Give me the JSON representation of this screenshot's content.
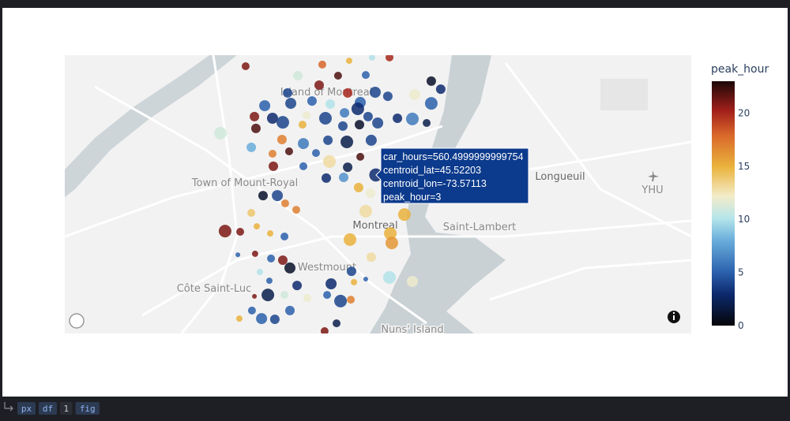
{
  "chart_data": {
    "type": "scattermapbox",
    "map_labels": {
      "island": "Island of Montreal",
      "town": "Town of Mount-Royal",
      "city": "Montreal",
      "westmount": "Westmount",
      "cote": "Côte Saint-Luc",
      "longueuil": "Longueuil",
      "airport": "YHU",
      "lambert": "Saint-Lambert",
      "nuns": "Nuns' Island"
    },
    "series": [
      {
        "lat": [
          45.568,
          45.5687,
          45.5703,
          45.5717,
          45.5717,
          45.564,
          45.564,
          45.5643,
          45.5617,
          45.56,
          45.5567,
          45.5567,
          45.557,
          45.5583,
          45.5513,
          45.5523,
          45.5533,
          45.552,
          45.5527,
          45.5553,
          45.556,
          45.5523,
          45.55,
          45.546,
          45.5467,
          45.5443,
          45.5473,
          45.546,
          45.5483,
          45.5467,
          45.546,
          45.5457,
          45.5397,
          45.5417,
          45.5433,
          45.5427,
          45.5433,
          45.544,
          45.544,
          45.5337,
          45.537,
          45.5353,
          45.5367,
          45.536,
          45.5367,
          45.531,
          45.532,
          45.5313,
          45.5277,
          45.5253,
          45.5297,
          45.5257,
          45.5257,
          45.5207,
          45.521,
          45.5167,
          45.5143,
          45.5133,
          45.5133,
          45.51,
          45.5073,
          45.506,
          45.5067,
          45.5053,
          45.4983,
          45.498,
          45.5003,
          45.4973,
          45.496,
          45.4947,
          45.4973,
          45.4933,
          45.4883,
          45.4887,
          45.4867,
          45.486,
          45.4827,
          45.481,
          45.4813,
          45.4873,
          45.4787,
          45.477,
          45.4773,
          45.4753,
          45.476,
          45.4767,
          45.478,
          45.4713,
          45.4713,
          45.47,
          45.4687,
          45.4693,
          45.4713,
          45.4707,
          45.4613,
          45.4647,
          45.4613,
          45.461,
          45.4647,
          45.4593,
          45.456,
          45.52203
        ],
        "lon": [
          -73.6496,
          -73.6034,
          -73.5872,
          -73.5734,
          -73.5629,
          -73.6181,
          -73.5939,
          -73.5772,
          -73.5377,
          -73.6053,
          -73.6243,
          -73.5881,
          -73.5715,
          -73.532,
          -73.6381,
          -73.6224,
          -73.6096,
          -73.5986,
          -73.5805,
          -73.5639,
          -73.5477,
          -73.5377,
          -73.582,
          -73.6334,
          -73.6443,
          -73.6272,
          -73.6129,
          -73.6015,
          -73.59,
          -73.5758,
          -73.5581,
          -73.5491,
          -73.6648,
          -73.6434,
          -73.6153,
          -73.591,
          -73.581,
          -73.57,
          -73.5405,
          -73.6462,
          -73.6277,
          -73.6148,
          -73.6,
          -73.5886,
          -73.5739,
          -73.6334,
          -73.6234,
          -73.6072,
          -73.5991,
          -73.5881,
          -73.5805,
          -73.6329,
          -73.6148,
          -73.601,
          -73.5905,
          -73.5815,
          -73.5743,
          -73.6391,
          -73.6305,
          -73.6258,
          -73.6191,
          -73.6462,
          -73.5772,
          -73.5539,
          -73.662,
          -73.6529,
          -73.6429,
          -73.6348,
          -73.6262,
          -73.5867,
          -73.5624,
          -73.5615,
          -73.6543,
          -73.6439,
          -73.6343,
          -73.6272,
          -73.6229,
          -73.641,
          -73.5858,
          -73.5739,
          -73.5629,
          -73.5491,
          -73.6353,
          -73.6186,
          -73.5981,
          -73.5843,
          -73.5772,
          -73.6362,
          -73.6262,
          -73.6124,
          -73.5924,
          -73.5862,
          -73.6005,
          -73.6443,
          -73.6534,
          -73.6458,
          -73.64,
          -73.632,
          -73.6229,
          -73.5948,
          -73.602,
          -73.57113
        ],
        "car_hours": [
          204,
          204,
          131,
          131,
          204,
          294,
          204,
          204,
          294,
          294,
          294,
          294,
          400,
          294,
          400,
          400,
          294,
          294,
          400,
          294,
          400,
          522,
          522,
          400,
          294,
          522,
          204,
          522,
          294,
          294,
          294,
          522,
          522,
          294,
          204,
          294,
          294,
          400,
          204,
          294,
          294,
          400,
          294,
          522,
          400,
          204,
          204,
          204,
          522,
          294,
          204,
          294,
          204,
          294,
          294,
          294,
          294,
          294,
          400,
          204,
          204,
          204,
          522,
          522,
          522,
          204,
          131,
          131,
          204,
          522,
          522,
          522,
          73,
          131,
          204,
          294,
          400,
          131,
          294,
          294,
          522,
          400,
          131,
          294,
          400,
          131,
          73,
          522,
          204,
          204,
          522,
          204,
          204,
          73,
          131,
          204,
          400,
          294,
          294,
          204,
          204,
          560.4999999999754
        ],
        "peak_hour": [
          21,
          18,
          15,
          10,
          20,
          11,
          22,
          5,
          1,
          21,
          4,
          20,
          4,
          3,
          5,
          4,
          5,
          10,
          5,
          4,
          12,
          5,
          3,
          3,
          21,
          4,
          12,
          4,
          6,
          4,
          3,
          6,
          11,
          22,
          15,
          4,
          1,
          4,
          2,
          8,
          17,
          6,
          4,
          2,
          4,
          17,
          22,
          5,
          13,
          2,
          22,
          21,
          5,
          3,
          7,
          15,
          12,
          1,
          4,
          17,
          17,
          14,
          13,
          15,
          21,
          21,
          15,
          15,
          5,
          15,
          15,
          16,
          5,
          21,
          5,
          21,
          1,
          10,
          4,
          13,
          10,
          12,
          5,
          3,
          3,
          15,
          5,
          2,
          11,
          12,
          4,
          17,
          5,
          21,
          15,
          5,
          5,
          4,
          5,
          2,
          21,
          3
        ]
      }
    ],
    "hover_label": [
      "car_hours=560.4999999999754",
      "centroid_lat=45.52203",
      "centroid_lon=-73.57113",
      "peak_hour=3"
    ],
    "colorbar": {
      "title": "peak_hour",
      "cmin": 0,
      "cmax": 23,
      "ticks": [
        0,
        5,
        10,
        15,
        20
      ],
      "colorscale": [
        [
          0,
          "#050508"
        ],
        [
          0.13,
          "#0d2a6e"
        ],
        [
          0.22,
          "#2c62ae"
        ],
        [
          0.35,
          "#6aaedc"
        ],
        [
          0.44,
          "#b6e6ea"
        ],
        [
          0.53,
          "#f3ecc9"
        ],
        [
          0.65,
          "#eab33c"
        ],
        [
          0.78,
          "#d9672a"
        ],
        [
          0.88,
          "#a11f1a"
        ],
        [
          1,
          "#1c0808"
        ]
      ]
    },
    "toolbar": [
      "px",
      "df",
      "1",
      "fig"
    ]
  }
}
